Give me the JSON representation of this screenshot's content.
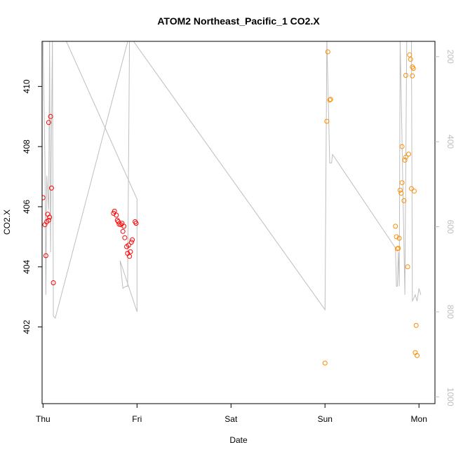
{
  "chart_data": {
    "type": "scatter",
    "title": "ATOM2 Northeast_Pacific_1 CO2.X",
    "xlabel": "Date",
    "ylabel": "CO2.X",
    "x_ticks": [
      "Thu",
      "Fri",
      "Sat",
      "Sun",
      "Mon"
    ],
    "xlim": [
      -0.01,
      4.17
    ],
    "ylim": [
      399.45,
      411.5
    ],
    "y_ticks": [
      402,
      404,
      406,
      408,
      410
    ],
    "y2": {
      "label": "",
      "ticks": [
        200,
        400,
        600,
        800,
        1000
      ],
      "range_top": 164,
      "range_bottom": 1016,
      "color": "#bebebe"
    },
    "grid": false,
    "legend": "none",
    "colors": {
      "red": "#ff0000",
      "orange": "#ff8c00",
      "line": "#bebebe"
    },
    "series": [
      {
        "color": "#ff0000",
        "points": [
          [
            0.0,
            406.3
          ],
          [
            0.02,
            405.4
          ],
          [
            0.03,
            404.37
          ],
          [
            0.04,
            405.5
          ],
          [
            0.05,
            405.75
          ],
          [
            0.06,
            405.55
          ],
          [
            0.06,
            408.8
          ],
          [
            0.07,
            405.65
          ],
          [
            0.08,
            409.0
          ],
          [
            0.09,
            406.62
          ],
          [
            0.11,
            403.47
          ],
          [
            0.75,
            405.78
          ],
          [
            0.76,
            405.85
          ],
          [
            0.78,
            405.72
          ],
          [
            0.79,
            405.55
          ],
          [
            0.8,
            405.5
          ],
          [
            0.81,
            405.42
          ],
          [
            0.83,
            405.4
          ],
          [
            0.84,
            405.45
          ],
          [
            0.85,
            405.18
          ],
          [
            0.86,
            405.35
          ],
          [
            0.87,
            404.97
          ],
          [
            0.89,
            404.67
          ],
          [
            0.9,
            404.45
          ],
          [
            0.91,
            404.72
          ],
          [
            0.92,
            404.35
          ],
          [
            0.93,
            404.5
          ],
          [
            0.94,
            404.82
          ],
          [
            0.95,
            404.9
          ],
          [
            0.98,
            405.5
          ],
          [
            0.99,
            405.45
          ]
        ]
      },
      {
        "color": "#ff8c00",
        "points": [
          [
            3.0,
            400.8
          ],
          [
            3.02,
            408.84
          ],
          [
            3.03,
            411.15
          ],
          [
            3.05,
            409.55
          ],
          [
            3.06,
            409.57
          ],
          [
            3.75,
            405.35
          ],
          [
            3.76,
            405.0
          ],
          [
            3.77,
            404.6
          ],
          [
            3.78,
            404.62
          ],
          [
            3.79,
            404.95
          ],
          [
            3.8,
            406.55
          ],
          [
            3.81,
            406.45
          ],
          [
            3.82,
            408.0
          ],
          [
            3.82,
            406.8
          ],
          [
            3.84,
            406.2
          ],
          [
            3.85,
            407.55
          ],
          [
            3.86,
            410.37
          ],
          [
            3.86,
            407.65
          ],
          [
            3.88,
            404.0
          ],
          [
            3.89,
            407.75
          ],
          [
            3.9,
            411.05
          ],
          [
            3.91,
            410.9
          ],
          [
            3.92,
            406.6
          ],
          [
            3.93,
            410.35
          ],
          [
            3.93,
            410.65
          ],
          [
            3.94,
            410.6
          ],
          [
            3.95,
            406.52
          ],
          [
            3.96,
            401.15
          ],
          [
            3.97,
            402.05
          ],
          [
            3.98,
            401.05
          ]
        ]
      }
    ],
    "y2_series": {
      "color": "#bebebe",
      "points": [
        [
          0.0,
          160
        ],
        [
          0.02,
          440
        ],
        [
          0.03,
          760
        ],
        [
          0.04,
          480
        ],
        [
          0.06,
          560
        ],
        [
          0.07,
          160
        ],
        [
          0.08,
          660
        ],
        [
          0.09,
          380
        ],
        [
          0.1,
          160
        ],
        [
          0.11,
          810
        ],
        [
          0.13,
          815
        ],
        [
          0.9,
          165
        ],
        [
          0.91,
          100
        ],
        [
          0.24,
          160
        ],
        [
          1.0,
          535
        ],
        [
          1.0,
          800
        ],
        [
          0.82,
          680
        ],
        [
          0.85,
          745
        ],
        [
          0.88,
          740
        ],
        [
          0.9,
          740
        ],
        [
          0.92,
          160
        ],
        [
          0.95,
          160
        ],
        [
          3.0,
          795
        ],
        [
          3.02,
          160
        ],
        [
          3.05,
          450
        ],
        [
          3.07,
          450
        ],
        [
          3.08,
          430
        ],
        [
          3.75,
          650
        ],
        [
          3.76,
          740
        ],
        [
          3.77,
          740
        ],
        [
          3.78,
          660
        ],
        [
          3.79,
          740
        ],
        [
          3.8,
          160
        ],
        [
          3.85,
          760
        ],
        [
          3.86,
          440
        ],
        [
          3.87,
          160
        ],
        [
          3.91,
          160
        ],
        [
          3.92,
          160
        ],
        [
          3.93,
          775
        ],
        [
          3.96,
          760
        ],
        [
          3.98,
          775
        ],
        [
          4.0,
          745
        ],
        [
          4.02,
          760
        ]
      ]
    }
  }
}
